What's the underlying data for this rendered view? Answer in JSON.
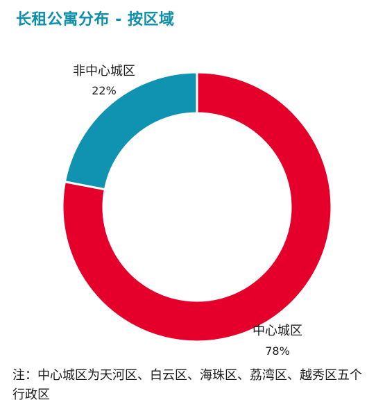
{
  "chart_data": {
    "type": "pie",
    "donut": true,
    "title": "长租公寓分布 - 按区域",
    "categories": [
      "中心城区",
      "非中心城区"
    ],
    "values": [
      78,
      22
    ],
    "labels": [
      "78%",
      "22%"
    ],
    "colors": [
      "#e4002b",
      "#0f93b0"
    ],
    "start": "12 o'clock",
    "direction": "clockwise"
  },
  "note": "注：中心城区为天河区、白云区、海珠区、荔湾区、越秀区五个行政区"
}
